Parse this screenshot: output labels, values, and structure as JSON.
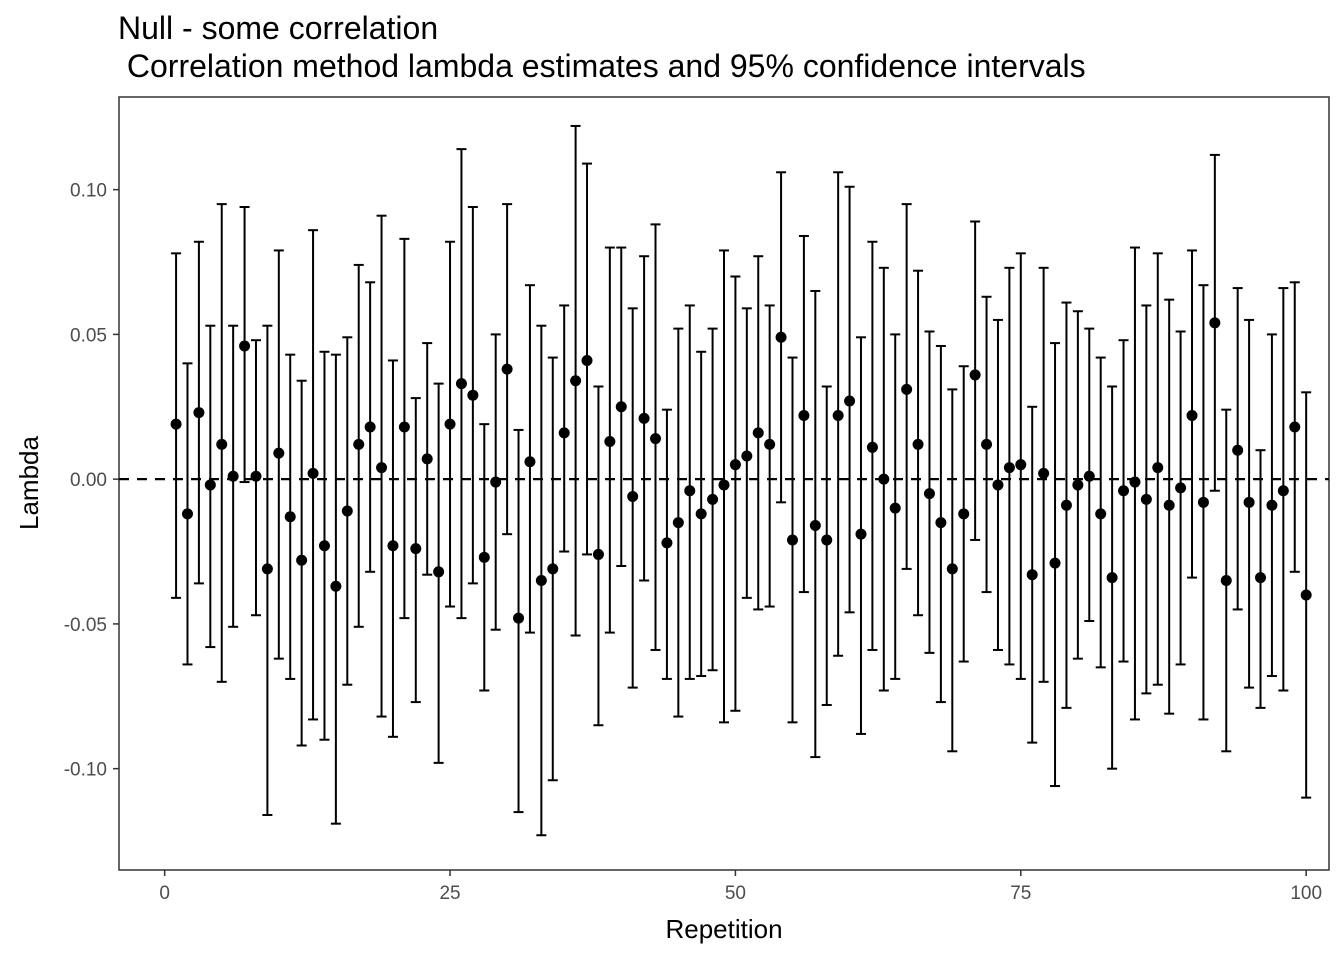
{
  "chart_data": {
    "type": "scatter",
    "title": "Null - some correlation",
    "subtitle": " Correlation method lambda estimates and 95% confidence intervals",
    "xlabel": "Repetition",
    "ylabel": "Lambda",
    "xlim": [
      -4,
      102
    ],
    "ylim": [
      -0.135,
      0.132
    ],
    "x_ticks": [
      0,
      25,
      50,
      75,
      100
    ],
    "y_ticks": [
      -0.1,
      -0.05,
      0.0,
      0.05,
      0.1
    ],
    "x_tick_labels": [
      "0",
      "25",
      "50",
      "75",
      "100"
    ],
    "y_tick_labels": [
      "-0.10",
      "-0.05",
      "0.00",
      "0.05",
      "0.10"
    ],
    "reference_line": {
      "y": 0,
      "style": "dashed"
    },
    "grid": false,
    "x": [
      1,
      2,
      3,
      4,
      5,
      6,
      7,
      8,
      9,
      10,
      11,
      12,
      13,
      14,
      15,
      16,
      17,
      18,
      19,
      20,
      21,
      22,
      23,
      24,
      25,
      26,
      27,
      28,
      29,
      30,
      31,
      32,
      33,
      34,
      35,
      36,
      37,
      38,
      39,
      40,
      41,
      42,
      43,
      44,
      45,
      46,
      47,
      48,
      49,
      50,
      51,
      52,
      53,
      54,
      55,
      56,
      57,
      58,
      59,
      60,
      61,
      62,
      63,
      64,
      65,
      66,
      67,
      68,
      69,
      70,
      71,
      72,
      73,
      74,
      75,
      76,
      77,
      78,
      79,
      80,
      81,
      82,
      83,
      84,
      85,
      86,
      87,
      88,
      89,
      90,
      91,
      92,
      93,
      94,
      95,
      96,
      97,
      98,
      99,
      100
    ],
    "estimate": [
      0.019,
      -0.012,
      0.023,
      -0.002,
      0.012,
      0.001,
      0.046,
      0.001,
      -0.031,
      0.009,
      -0.013,
      -0.028,
      0.002,
      -0.023,
      -0.037,
      -0.011,
      0.012,
      0.018,
      0.004,
      -0.023,
      0.018,
      -0.024,
      0.007,
      -0.032,
      0.019,
      0.033,
      0.029,
      -0.027,
      -0.001,
      0.038,
      -0.048,
      0.006,
      -0.035,
      -0.031,
      0.016,
      0.034,
      0.041,
      -0.026,
      0.013,
      0.025,
      -0.006,
      0.021,
      0.014,
      -0.022,
      -0.015,
      -0.004,
      -0.012,
      -0.007,
      -0.002,
      0.005,
      0.008,
      0.016,
      0.012,
      0.049,
      -0.021,
      0.022,
      -0.016,
      -0.021,
      0.022,
      0.027,
      -0.019,
      0.011,
      0.0,
      -0.01,
      0.031,
      0.012,
      -0.005,
      -0.015,
      -0.031,
      -0.012,
      0.036,
      0.012,
      -0.002,
      0.004,
      0.005,
      -0.033,
      0.002,
      -0.029,
      -0.009,
      -0.002,
      0.001,
      -0.012,
      -0.034,
      -0.004,
      -0.001,
      -0.007,
      0.004,
      -0.009,
      -0.003,
      0.022,
      -0.008,
      0.054,
      -0.035,
      0.01,
      -0.008,
      -0.034,
      -0.009,
      -0.004,
      0.018,
      -0.04
    ],
    "lower": [
      -0.041,
      -0.064,
      -0.036,
      -0.058,
      -0.07,
      -0.051,
      -0.001,
      -0.047,
      -0.116,
      -0.062,
      -0.069,
      -0.092,
      -0.083,
      -0.09,
      -0.119,
      -0.071,
      -0.051,
      -0.032,
      -0.082,
      -0.089,
      -0.048,
      -0.077,
      -0.033,
      -0.098,
      -0.044,
      -0.048,
      -0.036,
      -0.073,
      -0.052,
      -0.019,
      -0.115,
      -0.053,
      -0.123,
      -0.104,
      -0.025,
      -0.054,
      -0.026,
      -0.085,
      -0.053,
      -0.03,
      -0.072,
      -0.035,
      -0.059,
      -0.069,
      -0.082,
      -0.069,
      -0.068,
      -0.066,
      -0.084,
      -0.08,
      -0.041,
      -0.045,
      -0.044,
      -0.008,
      -0.084,
      -0.039,
      -0.096,
      -0.078,
      -0.061,
      -0.046,
      -0.088,
      -0.059,
      -0.073,
      -0.069,
      -0.031,
      -0.047,
      -0.06,
      -0.077,
      -0.094,
      -0.063,
      -0.021,
      -0.039,
      -0.059,
      -0.064,
      -0.069,
      -0.091,
      -0.07,
      -0.106,
      -0.079,
      -0.062,
      -0.049,
      -0.065,
      -0.1,
      -0.063,
      -0.083,
      -0.074,
      -0.071,
      -0.081,
      -0.064,
      -0.034,
      -0.083,
      -0.004,
      -0.094,
      -0.045,
      -0.072,
      -0.079,
      -0.068,
      -0.073,
      -0.032,
      -0.11
    ],
    "upper": [
      0.078,
      0.04,
      0.082,
      0.053,
      0.095,
      0.053,
      0.094,
      0.048,
      0.053,
      0.079,
      0.043,
      0.034,
      0.086,
      0.044,
      0.043,
      0.049,
      0.074,
      0.068,
      0.091,
      0.041,
      0.083,
      0.028,
      0.047,
      0.033,
      0.082,
      0.114,
      0.094,
      0.019,
      0.05,
      0.095,
      0.017,
      0.067,
      0.053,
      0.042,
      0.06,
      0.122,
      0.109,
      0.032,
      0.08,
      0.08,
      0.059,
      0.077,
      0.088,
      0.024,
      0.052,
      0.06,
      0.044,
      0.052,
      0.079,
      0.07,
      0.059,
      0.077,
      0.06,
      0.106,
      0.042,
      0.084,
      0.065,
      0.032,
      0.106,
      0.101,
      0.049,
      0.082,
      0.073,
      0.05,
      0.095,
      0.072,
      0.051,
      0.046,
      0.031,
      0.039,
      0.089,
      0.063,
      0.055,
      0.073,
      0.078,
      0.025,
      0.073,
      0.047,
      0.061,
      0.058,
      0.052,
      0.042,
      0.032,
      0.048,
      0.08,
      0.06,
      0.078,
      0.062,
      0.051,
      0.079,
      0.067,
      0.112,
      0.024,
      0.066,
      0.055,
      0.01,
      0.05,
      0.066,
      0.068,
      0.03
    ]
  }
}
